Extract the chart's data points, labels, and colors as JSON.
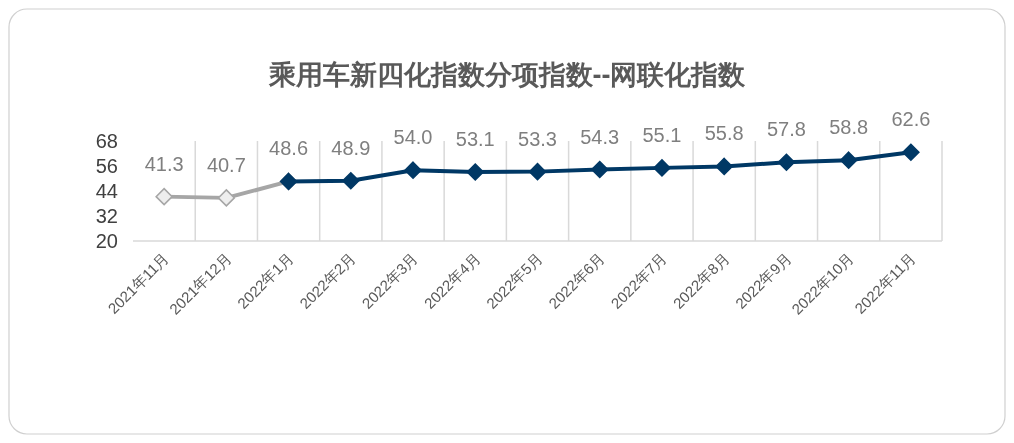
{
  "chart_data": {
    "type": "line",
    "title": "乘用车新四化指数分项指数--网联化指数",
    "categories": [
      "2021年11月",
      "2021年12月",
      "2022年1月",
      "2022年2月",
      "2022年3月",
      "2022年4月",
      "2022年5月",
      "2022年6月",
      "2022年7月",
      "2022年8月",
      "2022年9月",
      "2022年10月",
      "2022年11月"
    ],
    "series": [
      {
        "color": "#a6a6a6",
        "values": [
          41.3,
          40.7,
          48.6,
          null,
          null,
          null,
          null,
          null,
          null,
          null,
          null,
          null,
          null
        ],
        "value_labels": [
          "41.3",
          "40.7",
          null,
          null,
          null,
          null,
          null,
          null,
          null,
          null,
          null,
          null,
          null
        ]
      },
      {
        "color": "#003865",
        "values": [
          null,
          null,
          48.6,
          48.9,
          54.0,
          53.1,
          53.3,
          54.3,
          55.1,
          55.8,
          57.8,
          58.8,
          62.6
        ],
        "value_labels": [
          null,
          null,
          "48.6",
          "48.9",
          "54.0",
          "53.1",
          "53.3",
          "54.3",
          "55.1",
          "55.8",
          "57.8",
          "58.8",
          "62.6"
        ]
      }
    ],
    "ylim": [
      20,
      68
    ],
    "yticks": [
      20,
      32,
      44,
      56,
      68
    ],
    "grid": "x",
    "marker": "diamond"
  }
}
